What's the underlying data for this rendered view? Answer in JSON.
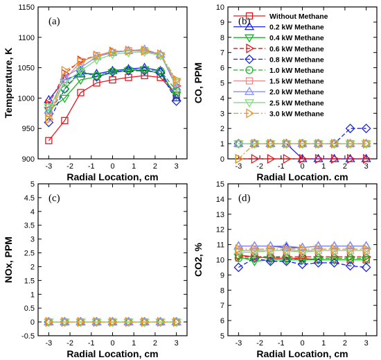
{
  "series_styles": [
    {
      "name": "Without Methane",
      "color": "#e8141b",
      "marker": "square",
      "dash": ""
    },
    {
      "name": "0.2 kW Methane",
      "color": "#1c24e6",
      "marker": "triangle",
      "dash": ""
    },
    {
      "name": "0.4 kW Methane",
      "color": "#19b324",
      "marker": "triangle-down",
      "dash": ""
    },
    {
      "name": "0.6 kW Methane",
      "color": "#e8141b",
      "marker": "triangle-right",
      "dash": "6,3"
    },
    {
      "name": "0.8 kW Methane",
      "color": "#1c24e6",
      "marker": "diamond",
      "dash": "6,3"
    },
    {
      "name": "1.0 kW Methane",
      "color": "#19b324",
      "marker": "circle",
      "dash": "6,3"
    },
    {
      "name": "1.5 kW Methane",
      "color": "#f08a8a",
      "marker": "square",
      "dash": ""
    },
    {
      "name": "2.0 kW Methane",
      "color": "#8a8ef2",
      "marker": "triangle",
      "dash": ""
    },
    {
      "name": "2.5 kW Methane",
      "color": "#7be07b",
      "marker": "triangle-down",
      "dash": ""
    },
    {
      "name": "3.0 kW Methane",
      "color": "#e8952a",
      "marker": "triangle-right",
      "dash": "7,3,2,3"
    }
  ],
  "chart_data": [
    {
      "type": "line",
      "panel_label": "(a)",
      "xlabel": "Radial Location, cm",
      "ylabel": "Temperature, K",
      "xlim": [
        -3.5,
        3.5
      ],
      "ylim": [
        900,
        1150
      ],
      "xticks": [
        -3,
        -2,
        -1,
        0,
        1,
        2,
        3
      ],
      "yticks": [
        900,
        950,
        1000,
        1050,
        1100,
        1150
      ],
      "x": [
        -3,
        -2.25,
        -1.5,
        -0.75,
        0,
        0.75,
        1.5,
        2.25,
        3
      ],
      "series": [
        {
          "name": "Without Methane",
          "values": [
            930,
            963,
            1009,
            1025,
            1030,
            1034,
            1037,
            1034,
            1005
          ]
        },
        {
          "name": "0.2 kW Methane",
          "values": [
            997,
            1030,
            1040,
            1040,
            1045,
            1048,
            1050,
            1045,
            1000
          ]
        },
        {
          "name": "0.4 kW Methane",
          "values": [
            980,
            1000,
            1030,
            1035,
            1042,
            1045,
            1047,
            1040,
            1005
          ]
        },
        {
          "name": "0.6 kW Methane",
          "values": [
            990,
            1040,
            1062,
            1070,
            1076,
            1078,
            1078,
            1072,
            1020
          ]
        },
        {
          "name": "0.8 kW Methane",
          "values": [
            960,
            1015,
            1045,
            1035,
            1043,
            1045,
            1045,
            1042,
            995
          ]
        },
        {
          "name": "1.0 kW Methane",
          "values": [
            975,
            1015,
            1043,
            1037,
            1044,
            1047,
            1047,
            1045,
            1012
          ]
        },
        {
          "name": "1.5 kW Methane",
          "values": [
            968,
            1030,
            1060,
            1070,
            1075,
            1078,
            1078,
            1070,
            1025
          ]
        },
        {
          "name": "2.0 kW Methane",
          "values": [
            980,
            1035,
            1050,
            1068,
            1075,
            1078,
            1080,
            1072,
            1018
          ]
        },
        {
          "name": "2.5 kW Methane",
          "values": [
            985,
            1025,
            1045,
            1063,
            1072,
            1075,
            1076,
            1070,
            1028
          ]
        },
        {
          "name": "3.0 kW Methane",
          "values": [
            965,
            1045,
            1060,
            1070,
            1077,
            1078,
            1078,
            1072,
            1030
          ]
        }
      ]
    },
    {
      "type": "line",
      "panel_label": "(b)",
      "xlabel": "Radial Location. cm",
      "ylabel": "CO, PPM",
      "xlim": [
        -3.5,
        3.5
      ],
      "ylim": [
        0,
        10
      ],
      "xticks": [
        -3,
        -2,
        -1,
        0,
        1,
        2,
        3
      ],
      "yticks": [
        0,
        1,
        2,
        3,
        4,
        5,
        6,
        7,
        8,
        9,
        10
      ],
      "x": [
        -3,
        -2.25,
        -1.5,
        -0.75,
        0,
        0.75,
        1.5,
        2.25,
        3
      ],
      "series": [
        {
          "name": "Without Methane",
          "values": [
            1,
            1,
            1,
            1,
            1,
            1,
            1,
            1,
            1
          ]
        },
        {
          "name": "0.2 kW Methane",
          "values": [
            1,
            1,
            1,
            1,
            0,
            0,
            0,
            0,
            0
          ]
        },
        {
          "name": "0.4 kW Methane",
          "values": [
            1,
            1,
            1,
            1,
            1,
            1,
            1,
            1,
            1
          ]
        },
        {
          "name": "0.6 kW Methane",
          "values": [
            0,
            0,
            0,
            0,
            0,
            0,
            0,
            0,
            0
          ]
        },
        {
          "name": "0.8 kW Methane",
          "values": [
            1,
            1,
            1,
            1,
            1,
            1,
            1,
            2,
            2
          ]
        },
        {
          "name": "1.0 kW Methane",
          "values": [
            1,
            1,
            1,
            1,
            1,
            1,
            1,
            1,
            1
          ]
        },
        {
          "name": "1.5 kW Methane",
          "values": [
            1,
            1,
            1,
            1,
            1,
            1,
            1,
            1,
            1
          ]
        },
        {
          "name": "2.0 kW Methane",
          "values": [
            1,
            1,
            1,
            1,
            1,
            1,
            1,
            1,
            1
          ]
        },
        {
          "name": "2.5 kW Methane",
          "values": [
            1,
            1,
            1,
            1,
            1,
            1,
            1,
            1,
            1
          ]
        },
        {
          "name": "3.0 kW Methane",
          "values": [
            0,
            1,
            1,
            1,
            1,
            1,
            1,
            1,
            1
          ]
        }
      ],
      "legend": "top-right"
    },
    {
      "type": "line",
      "panel_label": "(c)",
      "xlabel": "Radial Location, cm",
      "ylabel": "NOx, PPM",
      "xlim": [
        -3.5,
        3.5
      ],
      "ylim": [
        -0.5,
        5
      ],
      "xticks": [
        -3,
        -2,
        -1,
        0,
        1,
        2,
        3
      ],
      "yticks": [
        -0.5,
        0,
        0.5,
        1,
        1.5,
        2,
        2.5,
        3,
        3.5,
        4,
        4.5,
        5
      ],
      "x": [
        -3,
        -2.25,
        -1.5,
        -0.75,
        0,
        0.75,
        1.5,
        2.25,
        3
      ],
      "series": [
        {
          "name": "Without Methane",
          "values": [
            0,
            0,
            0,
            0,
            0,
            0,
            0,
            0,
            0
          ]
        },
        {
          "name": "0.2 kW Methane",
          "values": [
            0,
            0,
            0,
            0,
            0,
            0,
            0,
            0,
            0
          ]
        },
        {
          "name": "0.4 kW Methane",
          "values": [
            0,
            0,
            0,
            0,
            0,
            0,
            0,
            0,
            0
          ]
        },
        {
          "name": "0.6 kW Methane",
          "values": [
            0,
            0,
            0,
            0,
            0,
            0,
            0,
            0,
            0
          ]
        },
        {
          "name": "0.8 kW Methane",
          "values": [
            0,
            0,
            0,
            0,
            0,
            0,
            0,
            0,
            0
          ]
        },
        {
          "name": "1.0 kW Methane",
          "values": [
            0,
            0,
            0,
            0,
            0,
            0,
            0,
            0,
            0
          ]
        },
        {
          "name": "1.5 kW Methane",
          "values": [
            0,
            0,
            0,
            0,
            0,
            0,
            0,
            0,
            0
          ]
        },
        {
          "name": "2.0 kW Methane",
          "values": [
            0,
            0,
            0,
            0,
            0,
            0,
            0,
            0,
            0
          ]
        },
        {
          "name": "2.5 kW Methane",
          "values": [
            0,
            0,
            0,
            0,
            0,
            0,
            0,
            0,
            0
          ]
        },
        {
          "name": "3.0 kW Methane",
          "values": [
            0,
            0,
            0,
            0,
            0,
            0,
            0,
            0,
            0
          ]
        }
      ]
    },
    {
      "type": "line",
      "panel_label": "(d)",
      "xlabel": "Radial Location, cm",
      "ylabel": "CO2, %",
      "xlim": [
        -3.5,
        3.5
      ],
      "ylim": [
        5,
        15
      ],
      "xticks": [
        -3,
        -2,
        -1,
        0,
        1,
        2,
        3
      ],
      "yticks": [
        5,
        6,
        7,
        8,
        9,
        10,
        11,
        12,
        13,
        14,
        15
      ],
      "x": [
        -3,
        -2.25,
        -1.5,
        -0.75,
        0,
        0.75,
        1.5,
        2.25,
        3
      ],
      "series": [
        {
          "name": "Without Methane",
          "values": [
            10.3,
            10.2,
            10.1,
            10.1,
            10.1,
            10.0,
            10.0,
            10.0,
            10.0
          ]
        },
        {
          "name": "0.2 kW Methane",
          "values": [
            10.9,
            10.9,
            10.9,
            10.8,
            10.8,
            10.9,
            10.9,
            10.9,
            10.9
          ]
        },
        {
          "name": "0.4 kW Methane",
          "values": [
            10.2,
            9.9,
            10.0,
            10.0,
            10.0,
            10.0,
            10.0,
            10.0,
            10.0
          ]
        },
        {
          "name": "0.6 kW Methane",
          "values": [
            10.2,
            10.2,
            10.2,
            10.2,
            10.2,
            10.2,
            10.2,
            10.2,
            10.2
          ]
        },
        {
          "name": "0.8 kW Methane",
          "values": [
            9.5,
            10.1,
            9.9,
            9.9,
            9.7,
            9.8,
            9.8,
            9.6,
            9.5
          ]
        },
        {
          "name": "1.0 kW Methane",
          "values": [
            10.1,
            10.1,
            10.2,
            10.1,
            10.0,
            10.1,
            10.1,
            10.1,
            10.1
          ]
        },
        {
          "name": "1.5 kW Methane",
          "values": [
            10.6,
            10.6,
            10.6,
            10.6,
            10.6,
            10.6,
            10.6,
            10.6,
            10.6
          ]
        },
        {
          "name": "2.0 kW Methane",
          "values": [
            10.9,
            10.9,
            10.9,
            10.9,
            10.8,
            10.9,
            10.9,
            10.9,
            10.9
          ]
        },
        {
          "name": "2.5 kW Methane",
          "values": [
            10.5,
            10.5,
            10.6,
            10.6,
            10.5,
            10.6,
            10.6,
            10.6,
            10.6
          ]
        },
        {
          "name": "3.0 kW Methane",
          "values": [
            10.7,
            10.7,
            10.7,
            10.7,
            10.7,
            10.7,
            10.7,
            10.7,
            10.7
          ]
        }
      ]
    }
  ]
}
